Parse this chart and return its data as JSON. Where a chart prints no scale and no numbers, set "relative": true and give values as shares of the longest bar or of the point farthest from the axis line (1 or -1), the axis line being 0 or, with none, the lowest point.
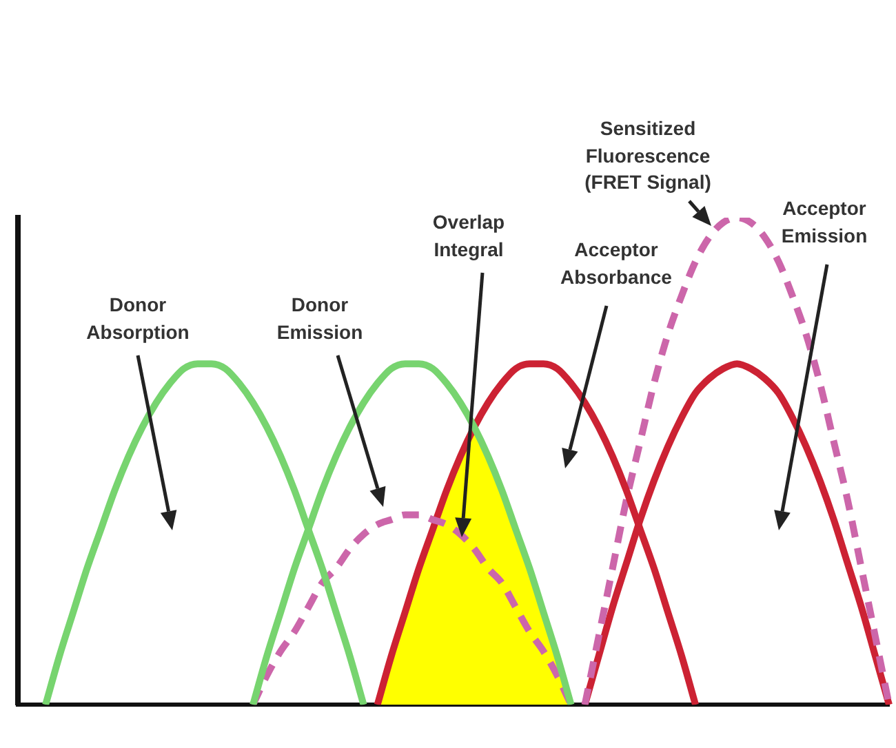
{
  "chart_data": {
    "type": "line",
    "relative": true,
    "marker": "none",
    "categories": [
      null,
      null,
      null,
      null,
      null,
      null,
      null,
      null,
      null,
      null,
      null,
      null,
      null,
      null,
      null,
      null,
      null,
      null,
      null,
      null,
      null,
      null,
      null,
      null,
      null,
      null,
      null,
      null,
      null,
      null,
      null,
      null,
      null,
      null,
      null,
      null,
      null,
      null,
      null,
      null,
      null,
      null,
      null,
      null,
      null,
      null,
      null,
      null,
      null,
      null,
      null,
      null,
      null,
      null,
      null,
      null,
      null,
      null,
      null,
      null,
      null,
      null,
      null,
      null
    ],
    "series": [
      {
        "name": "Donor Absorption",
        "color": "#77d46f",
        "line_style": "solid",
        "values": [
          null,
          null,
          0,
          0.1,
          0.19,
          0.28,
          0.36,
          0.44,
          0.51,
          0.57,
          0.62,
          0.66,
          0.69,
          0.7,
          0.7,
          0.69,
          0.66,
          0.62,
          0.57,
          0.51,
          0.44,
          0.36,
          0.28,
          0.19,
          0.1,
          0,
          null,
          null,
          null,
          null,
          null,
          null,
          null,
          null,
          null,
          null,
          null,
          null,
          null,
          null,
          null,
          null,
          null,
          null,
          null,
          null,
          null,
          null,
          null,
          null,
          null,
          null,
          null,
          null,
          null,
          null,
          null,
          null,
          null,
          null,
          null,
          null,
          null,
          null
        ]
      },
      {
        "name": "Donor Emission",
        "color": "#77d46f",
        "line_style": "solid",
        "values": [
          null,
          null,
          null,
          null,
          null,
          null,
          null,
          null,
          null,
          null,
          null,
          null,
          null,
          null,
          null,
          null,
          null,
          0,
          0.1,
          0.19,
          0.28,
          0.36,
          0.44,
          0.51,
          0.57,
          0.62,
          0.66,
          0.69,
          0.7,
          0.7,
          0.69,
          0.66,
          0.62,
          0.57,
          0.51,
          0.44,
          0.36,
          0.28,
          0.19,
          0.1,
          0,
          null,
          null,
          null,
          null,
          null,
          null,
          null,
          null,
          null,
          null,
          null,
          null,
          null,
          null,
          null,
          null,
          null,
          null,
          null,
          null,
          null,
          null,
          null
        ]
      },
      {
        "color": "#cc66aa",
        "line_style": "dashed",
        "values": [
          null,
          null,
          null,
          null,
          null,
          null,
          null,
          null,
          null,
          null,
          null,
          null,
          null,
          null,
          null,
          null,
          null,
          0,
          0.06,
          0.11,
          0.15,
          0.2,
          0.25,
          0.28,
          0.32,
          0.35,
          0.37,
          0.38,
          0.39,
          0.39,
          0.38,
          0.37,
          0.35,
          0.32,
          0.28,
          0.25,
          0.2,
          0.15,
          0.11,
          0.06,
          0,
          null,
          null,
          null,
          null,
          null,
          null,
          null,
          null,
          null,
          null,
          null,
          null,
          null,
          null,
          null,
          null,
          null,
          null,
          null,
          null,
          null,
          null,
          null
        ]
      },
      {
        "name": "Overlap Integral",
        "type": "area",
        "color": "#ffff00",
        "values": [
          null,
          null,
          null,
          null,
          null,
          null,
          null,
          null,
          null,
          null,
          null,
          null,
          null,
          null,
          null,
          null,
          null,
          null,
          null,
          null,
          null,
          null,
          null,
          null,
          null,
          null,
          0,
          0.1,
          0.19,
          0.28,
          0.36,
          0.44,
          0.51,
          0.57,
          0.51,
          0.44,
          0.36,
          0.28,
          0.19,
          0.1,
          0,
          null,
          null,
          null,
          null,
          null,
          null,
          null,
          null,
          null,
          null,
          null,
          null,
          null,
          null,
          null,
          null,
          null,
          null,
          null,
          null,
          null,
          null,
          null
        ]
      },
      {
        "name": "Acceptor Absorbance",
        "color": "#cc2233",
        "line_style": "solid",
        "values": [
          null,
          null,
          null,
          null,
          null,
          null,
          null,
          null,
          null,
          null,
          null,
          null,
          null,
          null,
          null,
          null,
          null,
          null,
          null,
          null,
          null,
          null,
          null,
          null,
          null,
          null,
          0,
          0.1,
          0.19,
          0.28,
          0.36,
          0.44,
          0.51,
          0.57,
          0.62,
          0.66,
          0.69,
          0.7,
          0.7,
          0.69,
          0.66,
          0.62,
          0.57,
          0.51,
          0.44,
          0.36,
          0.28,
          0.19,
          0.1,
          0,
          null,
          null,
          null,
          null,
          null,
          null,
          null,
          null,
          null,
          null,
          null,
          null,
          null,
          null
        ]
      },
      {
        "name": "Sensitized Fluorescence (FRET Signal)",
        "color": "#cc66aa",
        "line_style": "dashed",
        "values": [
          null,
          null,
          null,
          null,
          null,
          null,
          null,
          null,
          null,
          null,
          null,
          null,
          null,
          null,
          null,
          null,
          null,
          null,
          null,
          null,
          null,
          null,
          null,
          null,
          null,
          null,
          null,
          null,
          null,
          null,
          null,
          null,
          null,
          null,
          null,
          null,
          null,
          null,
          null,
          null,
          null,
          0,
          0.14,
          0.28,
          0.42,
          0.54,
          0.66,
          0.76,
          0.84,
          0.91,
          0.96,
          0.99,
          1.0,
          0.99,
          0.96,
          0.91,
          0.84,
          0.76,
          0.66,
          0.54,
          0.42,
          0.28,
          0.14,
          0
        ]
      },
      {
        "name": "Acceptor Emission",
        "color": "#cc2233",
        "line_style": "solid",
        "values": [
          null,
          null,
          null,
          null,
          null,
          null,
          null,
          null,
          null,
          null,
          null,
          null,
          null,
          null,
          null,
          null,
          null,
          null,
          null,
          null,
          null,
          null,
          null,
          null,
          null,
          null,
          null,
          null,
          null,
          null,
          null,
          null,
          null,
          null,
          null,
          null,
          null,
          null,
          null,
          null,
          null,
          0,
          0.1,
          0.2,
          0.29,
          0.38,
          0.46,
          0.53,
          0.59,
          0.64,
          0.67,
          0.69,
          0.7,
          0.69,
          0.67,
          0.64,
          0.59,
          0.53,
          0.46,
          0.38,
          0.29,
          0.2,
          0.1,
          0
        ]
      }
    ]
  }
}
